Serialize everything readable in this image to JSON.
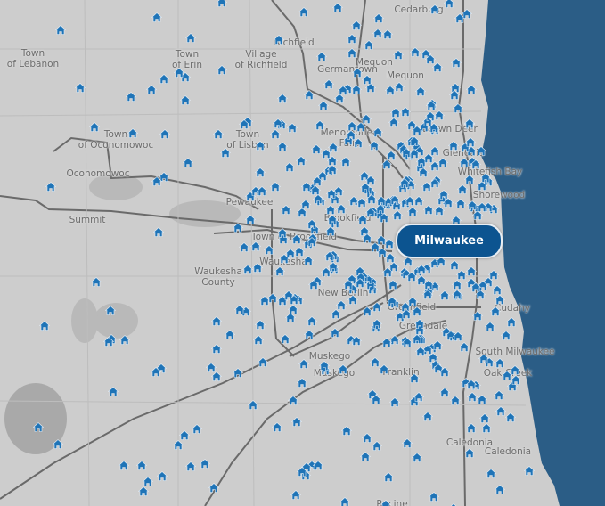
{
  "map": {
    "highlight_city": "Milwaukee",
    "lake_color": "#2b5d86",
    "land_color": "#cdcdcd",
    "marker_color": "#1f74b7",
    "marker_icon": "house-icon",
    "labels": [
      "Cedarburg",
      "Town of Lebanon",
      "Town of Erin",
      "Village of Richfield",
      "Richfield",
      "Germantown",
      "Mequon",
      "Mequon",
      "Town of Oconomowoc",
      "Town of Lisbon",
      "Menomonee Falls",
      "Brown Deer",
      "Oconomowoc",
      "Glendale",
      "Whitefish Bay",
      "Shorewood",
      "Pewaukee",
      "Summit",
      "Brookfield",
      "Town of Brookfield",
      "Waukesha",
      "Waukesha County",
      "New Berlin",
      "Greenfield",
      "Greendale",
      "Cudahy",
      "South Milwaukee",
      "Muskego",
      "Muskego",
      "Franklin",
      "Oak Creek",
      "Caledonia",
      "Caledonia",
      "Racine"
    ]
  }
}
